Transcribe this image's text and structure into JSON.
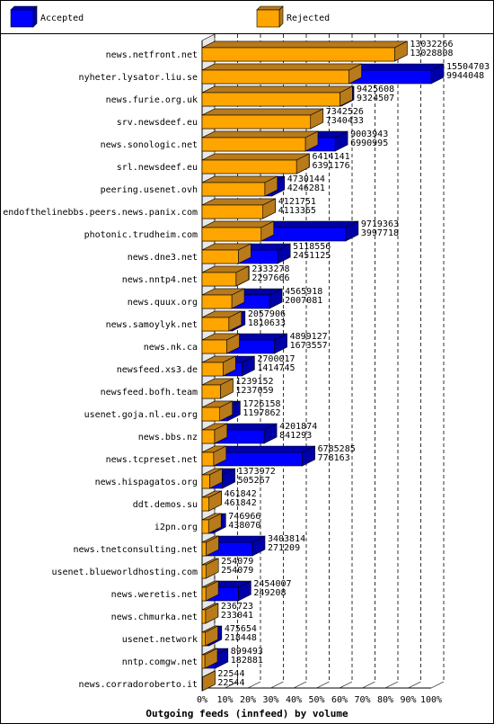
{
  "chart_data": {
    "type": "bar",
    "title": "Outgoing feeds (innfeed) by volume",
    "series": [
      {
        "name": "Accepted",
        "color": "#0000ff",
        "values": [
          13032266,
          15504703,
          9425608,
          7342526,
          9003943,
          6414141,
          4730144,
          4121751,
          9719363,
          5118556,
          2333278,
          4565918,
          2057906,
          4899127,
          2700017,
          1239152,
          1726158,
          4201874,
          6785285,
          1373972,
          461842,
          746966,
          3403814,
          254079,
          2454007,
          236723,
          475654,
          899493,
          22544
        ]
      },
      {
        "name": "Rejected",
        "color": "#ffa500",
        "values": [
          13028808,
          9944048,
          9324507,
          7340433,
          6990995,
          6391176,
          4246281,
          4113365,
          3997718,
          2451125,
          2297666,
          2007081,
          1810633,
          1673557,
          1414745,
          1237059,
          1197862,
          841293,
          778163,
          505267,
          461842,
          438070,
          271209,
          254079,
          249208,
          233041,
          218448,
          182881,
          22544
        ]
      }
    ],
    "categories": [
      "news.netfront.net",
      "nyheter.lysator.liu.se",
      "news.furie.org.uk",
      "srv.newsdeef.eu",
      "news.sonologic.net",
      "srl.newsdeef.eu",
      "peering.usenet.ovh",
      "endofthelinebbs.peers.news.panix.com",
      "photonic.trudheim.com",
      "news.dne3.net",
      "news.nntp4.net",
      "news.quux.org",
      "news.samoylyk.net",
      "news.nk.ca",
      "newsfeed.xs3.de",
      "newsfeed.bofh.team",
      "usenet.goja.nl.eu.org",
      "news.bbs.nz",
      "news.tcpreset.net",
      "news.hispagatos.org",
      "ddt.demos.su",
      "i2pn.org",
      "news.tnetconsulting.net",
      "usenet.blueworldhosting.com",
      "news.weretis.net",
      "news.chmurka.net",
      "usenet.network",
      "nntp.comgw.net",
      "news.corradoroberto.it"
    ],
    "x_ticks": [
      "0%",
      "10%",
      "20%",
      "30%",
      "40%",
      "50%",
      "60%",
      "70%",
      "80%",
      "90%",
      "100%"
    ],
    "xlim": [
      0,
      100
    ],
    "grid": true,
    "legend_position": "top"
  }
}
